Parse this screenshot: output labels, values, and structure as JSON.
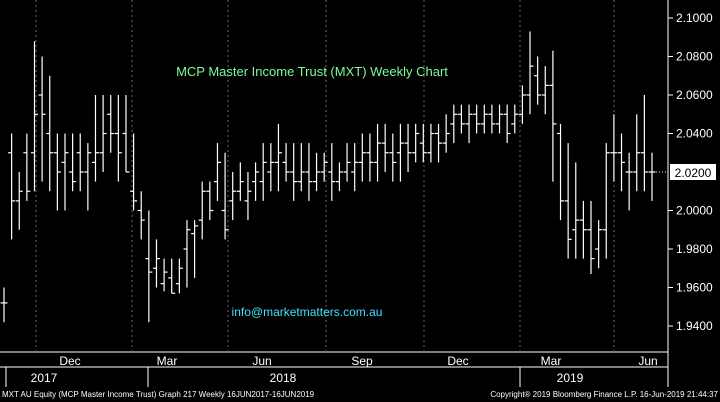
{
  "chart_data": {
    "type": "ohlc",
    "title": "MCP Master Income Trust (MXT) Weekly Chart",
    "watermark": "info@marketmatters.com.au",
    "last_price_label": "2.0200",
    "ylim": [
      1.93,
      2.105
    ],
    "yticks": [
      "2.1000",
      "2.0800",
      "2.0600",
      "2.0400",
      "2.0000",
      "1.9800",
      "1.9600",
      "1.9400"
    ],
    "xticks": [
      "Dec",
      "Mar",
      "Jun",
      "Sep",
      "Dec",
      "Mar",
      "Jun"
    ],
    "year_labels": [
      "2017",
      "2018",
      "2019"
    ],
    "colors": {
      "background": "#000000",
      "bars": "#ffffff",
      "title": "#7CFC9A",
      "watermark": "#3fe0ff",
      "last_price_box": "#ffffff"
    },
    "bars": [
      {
        "h": 1.96,
        "l": 1.942,
        "o": 1.952,
        "c": 1.952
      },
      {
        "h": 2.04,
        "l": 1.985,
        "o": 2.03,
        "c": 2.005
      },
      {
        "h": 2.02,
        "l": 1.99,
        "o": 2.005,
        "c": 2.01
      },
      {
        "h": 2.04,
        "l": 2.005,
        "o": 2.03,
        "c": 2.01
      },
      {
        "h": 2.088,
        "l": 2.01,
        "o": 2.03,
        "c": 2.05
      },
      {
        "h": 2.08,
        "l": 2.015,
        "o": 2.06,
        "c": 2.05
      },
      {
        "h": 2.07,
        "l": 2.01,
        "o": 2.04,
        "c": 2.03
      },
      {
        "h": 2.04,
        "l": 2.0,
        "o": 2.03,
        "c": 2.02
      },
      {
        "h": 2.04,
        "l": 2.0,
        "o": 2.025,
        "c": 2.03
      },
      {
        "h": 2.04,
        "l": 2.01,
        "o": 2.02,
        "c": 2.015
      },
      {
        "h": 2.04,
        "l": 2.01,
        "o": 2.03,
        "c": 2.02
      },
      {
        "h": 2.035,
        "l": 2.0,
        "o": 2.02,
        "c": 2.03
      },
      {
        "h": 2.06,
        "l": 2.015,
        "o": 2.025,
        "c": 2.03
      },
      {
        "h": 2.06,
        "l": 2.02,
        "o": 2.03,
        "c": 2.04
      },
      {
        "h": 2.06,
        "l": 2.03,
        "o": 2.05,
        "c": 2.04
      },
      {
        "h": 2.06,
        "l": 2.015,
        "o": 2.04,
        "c": 2.03
      },
      {
        "h": 2.06,
        "l": 2.02,
        "o": 2.04,
        "c": 2.02
      },
      {
        "h": 2.04,
        "l": 2.0,
        "o": 2.01,
        "c": 2.005
      },
      {
        "h": 2.01,
        "l": 1.985,
        "o": 2.0,
        "c": 1.995
      },
      {
        "h": 2.0,
        "l": 1.942,
        "o": 1.975,
        "c": 1.968
      },
      {
        "h": 1.985,
        "l": 1.96,
        "o": 1.97,
        "c": 1.975
      },
      {
        "h": 1.975,
        "l": 1.958,
        "o": 1.962,
        "c": 1.968
      },
      {
        "h": 1.975,
        "l": 1.957,
        "o": 1.965,
        "c": 1.957
      },
      {
        "h": 1.975,
        "l": 1.957,
        "o": 1.962,
        "c": 1.97
      },
      {
        "h": 1.995,
        "l": 1.96,
        "o": 1.98,
        "c": 1.99
      },
      {
        "h": 1.995,
        "l": 1.965,
        "o": 1.988,
        "c": 1.992
      },
      {
        "h": 2.015,
        "l": 1.985,
        "o": 1.995,
        "c": 2.01
      },
      {
        "h": 2.015,
        "l": 1.995,
        "o": 2.01,
        "c": 2.0
      },
      {
        "h": 2.035,
        "l": 2.005,
        "o": 2.015,
        "c": 2.025
      },
      {
        "h": 2.03,
        "l": 1.985,
        "o": 2.0,
        "c": 1.99
      },
      {
        "h": 2.02,
        "l": 1.995,
        "o": 2.005,
        "c": 2.01
      },
      {
        "h": 2.025,
        "l": 2.005,
        "o": 2.01,
        "c": 2.015
      },
      {
        "h": 2.02,
        "l": 1.995,
        "o": 2.005,
        "c": 2.01
      },
      {
        "h": 2.025,
        "l": 2.005,
        "o": 2.015,
        "c": 2.02
      },
      {
        "h": 2.035,
        "l": 2.005,
        "o": 2.015,
        "c": 2.025
      },
      {
        "h": 2.035,
        "l": 2.01,
        "o": 2.02,
        "c": 2.025
      },
      {
        "h": 2.045,
        "l": 2.01,
        "o": 2.025,
        "c": 2.03
      },
      {
        "h": 2.035,
        "l": 2.015,
        "o": 2.025,
        "c": 2.02
      },
      {
        "h": 2.035,
        "l": 2.005,
        "o": 2.02,
        "c": 2.015
      },
      {
        "h": 2.035,
        "l": 2.01,
        "o": 2.015,
        "c": 2.02
      },
      {
        "h": 2.035,
        "l": 2.005,
        "o": 2.02,
        "c": 2.015
      },
      {
        "h": 2.03,
        "l": 2.01,
        "o": 2.015,
        "c": 2.02
      },
      {
        "h": 2.03,
        "l": 2.015,
        "o": 2.02,
        "c": 2.025
      },
      {
        "h": 2.035,
        "l": 2.005,
        "o": 2.02,
        "c": 2.015
      },
      {
        "h": 2.025,
        "l": 2.01,
        "o": 2.015,
        "c": 2.02
      },
      {
        "h": 2.035,
        "l": 2.015,
        "o": 2.02,
        "c": 2.025
      },
      {
        "h": 2.035,
        "l": 2.01,
        "o": 2.02,
        "c": 2.025
      },
      {
        "h": 2.04,
        "l": 2.015,
        "o": 2.025,
        "c": 2.03
      },
      {
        "h": 2.04,
        "l": 2.015,
        "o": 2.03,
        "c": 2.025
      },
      {
        "h": 2.045,
        "l": 2.015,
        "o": 2.025,
        "c": 2.035
      },
      {
        "h": 2.045,
        "l": 2.02,
        "o": 2.035,
        "c": 2.03
      },
      {
        "h": 2.04,
        "l": 2.015,
        "o": 2.03,
        "c": 2.025
      },
      {
        "h": 2.045,
        "l": 2.015,
        "o": 2.03,
        "c": 2.035
      },
      {
        "h": 2.045,
        "l": 2.02,
        "o": 2.035,
        "c": 2.03
      },
      {
        "h": 2.045,
        "l": 2.025,
        "o": 2.03,
        "c": 2.04
      },
      {
        "h": 2.045,
        "l": 2.025,
        "o": 2.035,
        "c": 2.03
      },
      {
        "h": 2.045,
        "l": 2.025,
        "o": 2.03,
        "c": 2.04
      },
      {
        "h": 2.045,
        "l": 2.025,
        "o": 2.04,
        "c": 2.035
      },
      {
        "h": 2.05,
        "l": 2.03,
        "o": 2.035,
        "c": 2.04
      },
      {
        "h": 2.055,
        "l": 2.035,
        "o": 2.045,
        "c": 2.05
      },
      {
        "h": 2.055,
        "l": 2.04,
        "o": 2.05,
        "c": 2.045
      },
      {
        "h": 2.055,
        "l": 2.035,
        "o": 2.045,
        "c": 2.05
      },
      {
        "h": 2.055,
        "l": 2.04,
        "o": 2.05,
        "c": 2.045
      },
      {
        "h": 2.055,
        "l": 2.04,
        "o": 2.045,
        "c": 2.05
      },
      {
        "h": 2.055,
        "l": 2.04,
        "o": 2.05,
        "c": 2.045
      },
      {
        "h": 2.055,
        "l": 2.04,
        "o": 2.045,
        "c": 2.05
      },
      {
        "h": 2.055,
        "l": 2.035,
        "o": 2.05,
        "c": 2.04
      },
      {
        "h": 2.055,
        "l": 2.04,
        "o": 2.045,
        "c": 2.05
      },
      {
        "h": 2.065,
        "l": 2.045,
        "o": 2.05,
        "c": 2.06
      },
      {
        "h": 2.093,
        "l": 2.05,
        "o": 2.06,
        "c": 2.075
      },
      {
        "h": 2.08,
        "l": 2.055,
        "o": 2.07,
        "c": 2.06
      },
      {
        "h": 2.075,
        "l": 2.05,
        "o": 2.06,
        "c": 2.065
      },
      {
        "h": 2.083,
        "l": 2.015,
        "o": 2.065,
        "c": 2.045
      },
      {
        "h": 2.045,
        "l": 1.995,
        "o": 2.04,
        "c": 2.005
      },
      {
        "h": 2.035,
        "l": 1.975,
        "o": 2.005,
        "c": 1.985
      },
      {
        "h": 2.025,
        "l": 1.975,
        "o": 1.99,
        "c": 1.995
      },
      {
        "h": 2.005,
        "l": 1.975,
        "o": 1.995,
        "c": 1.99
      },
      {
        "h": 2.005,
        "l": 1.967,
        "o": 1.99,
        "c": 1.975
      },
      {
        "h": 1.995,
        "l": 1.97,
        "o": 1.98,
        "c": 1.99
      },
      {
        "h": 2.035,
        "l": 1.975,
        "o": 1.99,
        "c": 2.03
      },
      {
        "h": 2.05,
        "l": 2.015,
        "o": 2.03,
        "c": 2.03
      },
      {
        "h": 2.04,
        "l": 2.01,
        "o": 2.03,
        "c": 2.025
      },
      {
        "h": 2.03,
        "l": 2.0,
        "o": 2.02,
        "c": 2.02
      },
      {
        "h": 2.05,
        "l": 2.01,
        "o": 2.02,
        "c": 2.03
      },
      {
        "h": 2.06,
        "l": 2.01,
        "o": 2.03,
        "c": 2.02
      },
      {
        "h": 2.03,
        "l": 2.005,
        "o": 2.02,
        "c": 2.02
      }
    ]
  },
  "footer": {
    "left": "MXT AU Equity (MCP Master Income Trust) Graph 217  Weekly 16JUN2017-16JUN2019",
    "right": "Copyright® 2019 Bloomberg Finance L.P.        16-Jun-2019 21:44:37"
  }
}
